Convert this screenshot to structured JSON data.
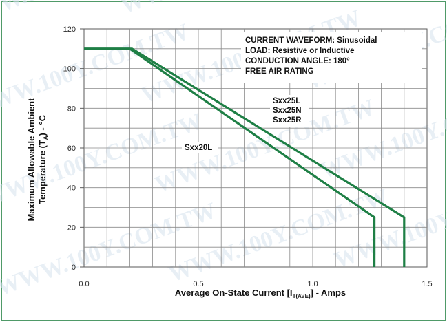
{
  "watermark": "WWW.100Y.COM.TW",
  "chart_data": {
    "type": "line",
    "xlabel_main": "Average On-State Current [I",
    "xlabel_sub": "T(AVE)",
    "xlabel_tail": "] - Amps",
    "ylabel_line1": "Maximum Allowable Ambient",
    "ylabel_line2_main": "Temperature (T",
    "ylabel_line2_sub": "A",
    "ylabel_line2_tail": ") - °C",
    "xlim": [
      0.0,
      1.5
    ],
    "ylim": [
      0,
      120
    ],
    "x_ticks": [
      "0.0",
      "0.5",
      "1.0",
      "1.5"
    ],
    "x_tick_values": [
      0.0,
      0.5,
      1.0,
      1.5
    ],
    "y_ticks": [
      "0",
      "20",
      "40",
      "60",
      "80",
      "100",
      "120"
    ],
    "y_tick_values": [
      0,
      20,
      40,
      60,
      80,
      100,
      120
    ],
    "grid": true,
    "series_color": "#1e7f45",
    "series": [
      {
        "name": "Sxx20L",
        "points": [
          [
            0.0,
            110
          ],
          [
            0.2,
            110
          ],
          [
            1.27,
            25
          ],
          [
            1.27,
            0
          ]
        ]
      },
      {
        "name": "Sxx25L / Sxx25N / Sxx25R",
        "points": [
          [
            0.0,
            110
          ],
          [
            0.21,
            110
          ],
          [
            1.4,
            25
          ],
          [
            1.4,
            0
          ]
        ]
      }
    ],
    "annotations": {
      "conditions": [
        "CURRENT WAVEFORM: Sinusoidal",
        "LOAD: Resistive or Inductive",
        "CONDUCTION ANGLE: 180°",
        "FREE AIR RATING"
      ],
      "label_sxx20": "Sxx20L",
      "label_sxx25": [
        "Sxx25L",
        "Sxx25N",
        "Sxx25R"
      ]
    }
  }
}
